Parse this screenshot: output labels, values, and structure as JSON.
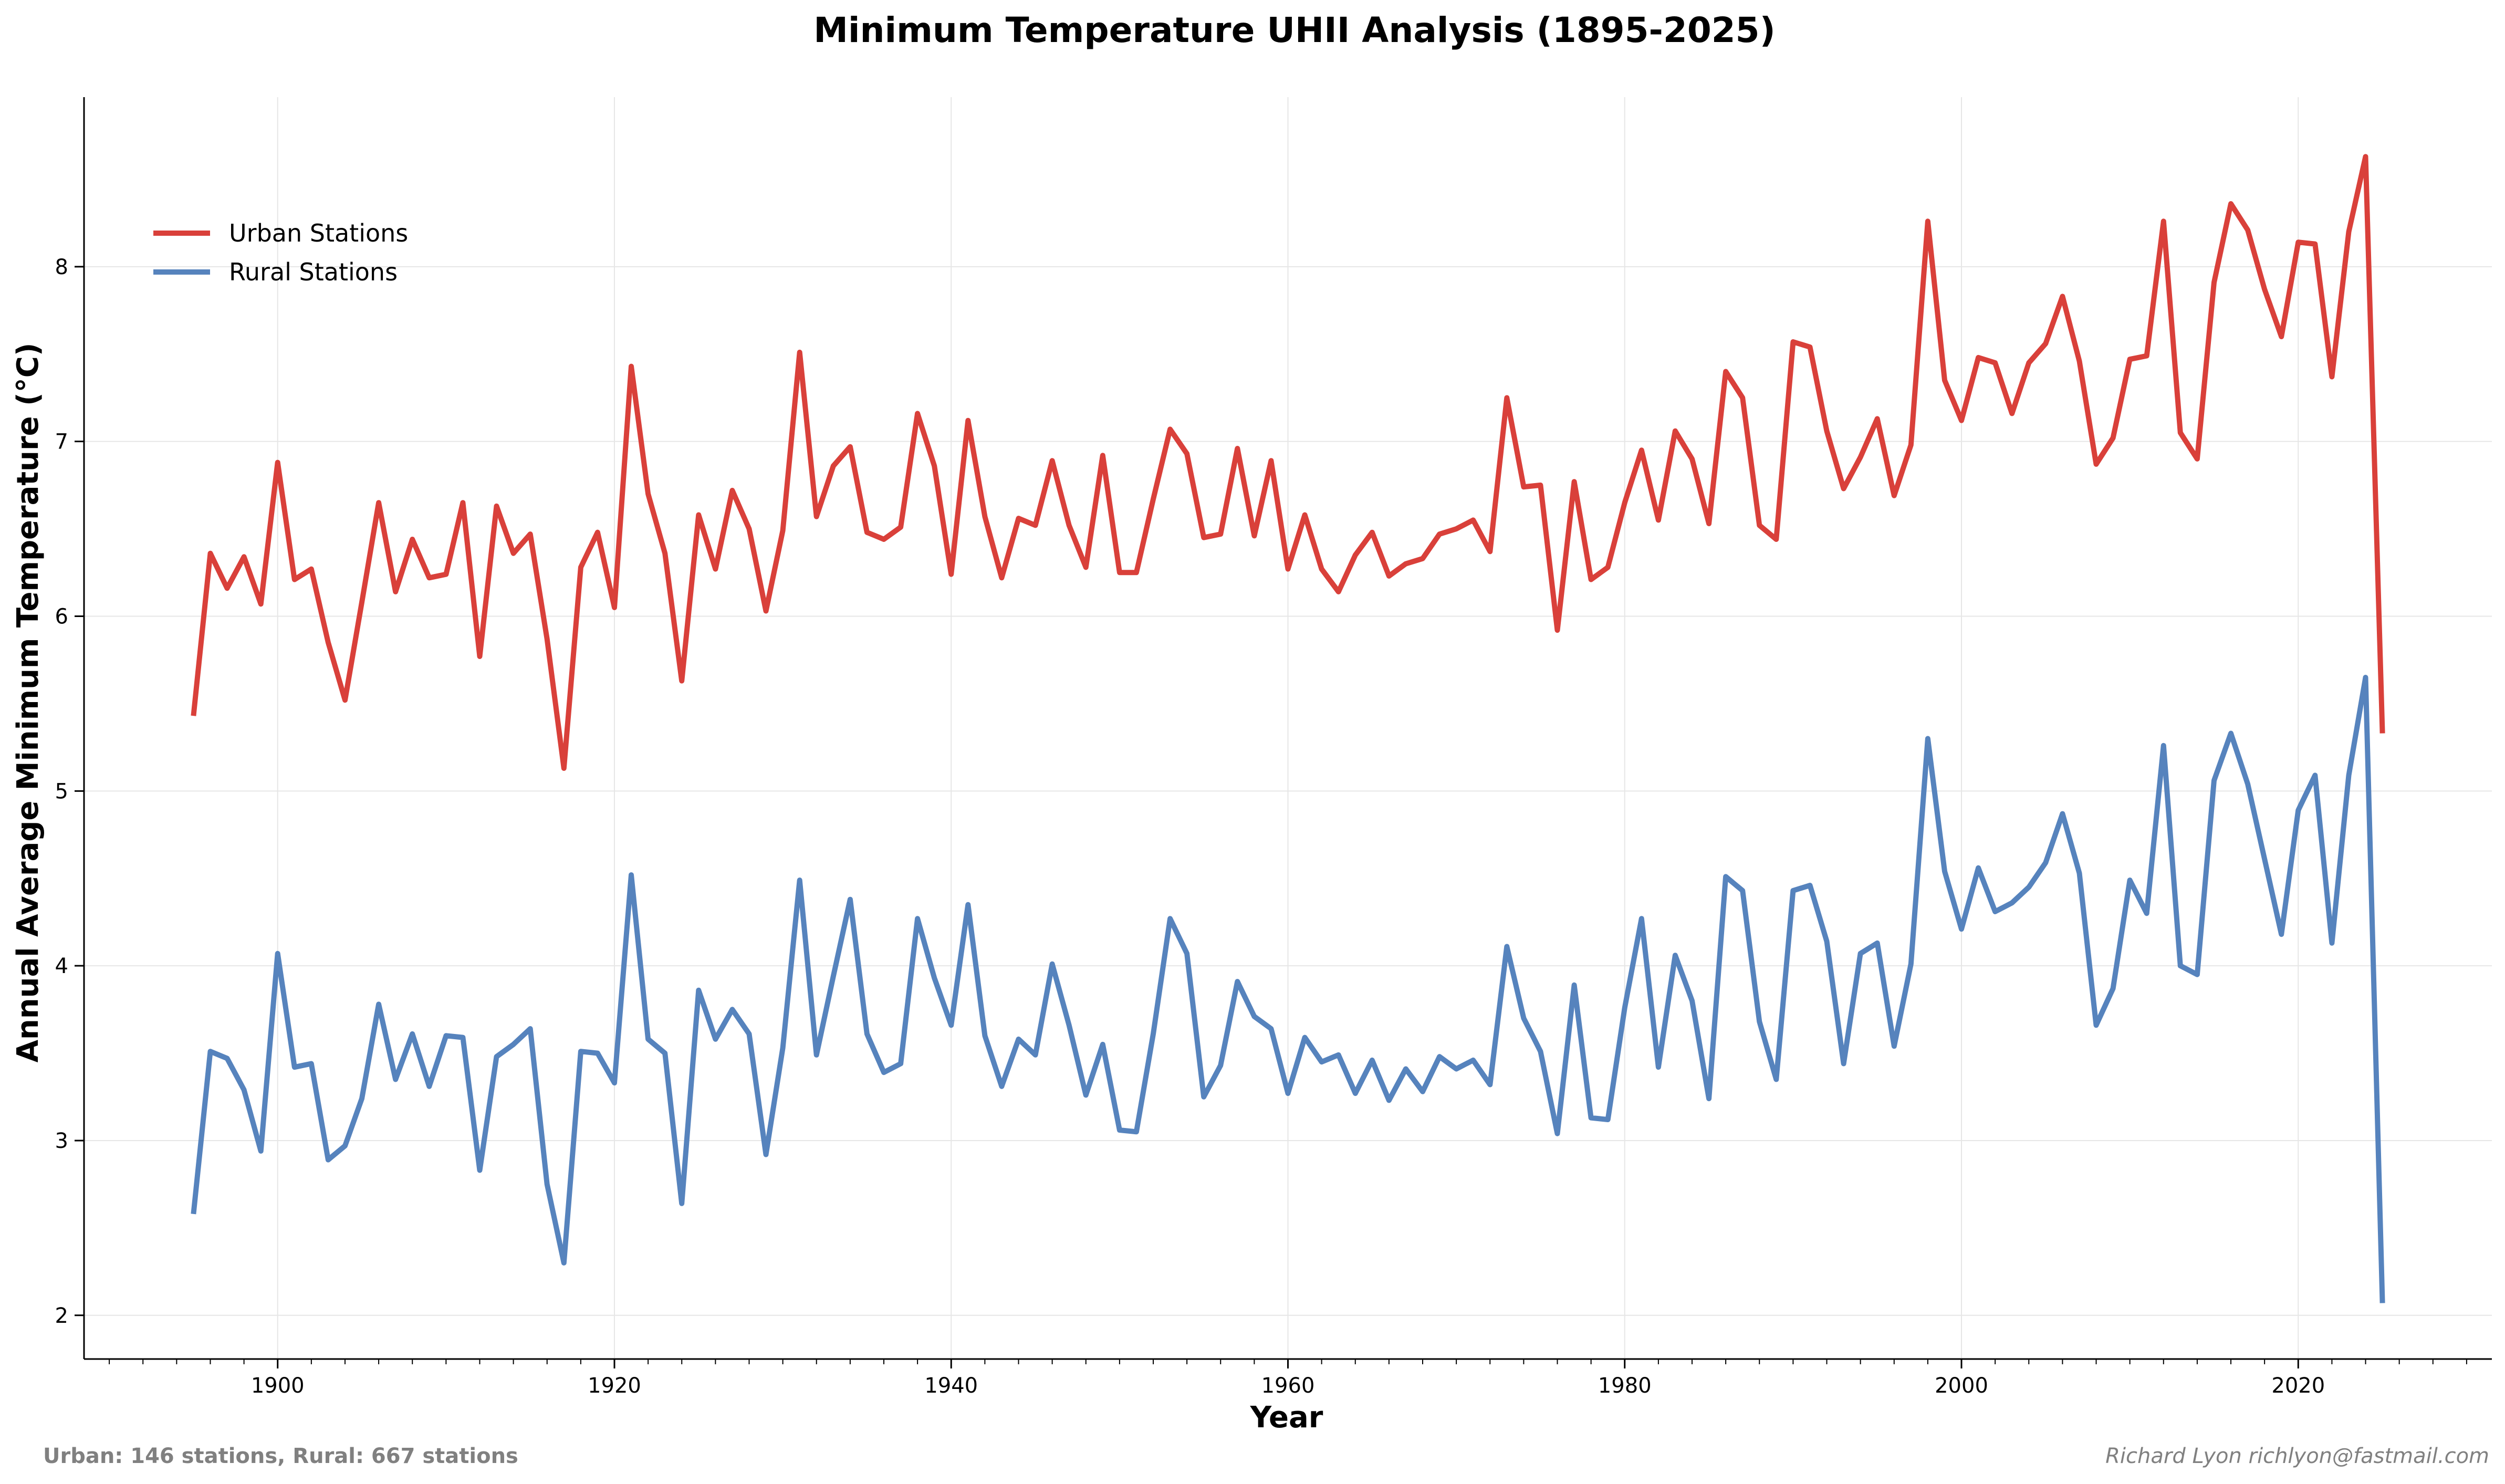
{
  "chart_data": {
    "type": "line",
    "title": "Minimum Temperature UHII Analysis (1895-2025)",
    "xlabel": "Year",
    "ylabel": "Annual Average Minimum Temperature (°C)",
    "xlim": [
      1888.5,
      2031.5
    ],
    "ylim": [
      1.75,
      8.97
    ],
    "x_ticks": [
      1900,
      1920,
      1940,
      1960,
      1980,
      2000,
      2020
    ],
    "y_ticks": [
      2,
      3,
      4,
      5,
      6,
      7,
      8
    ],
    "x_minor_step": 2,
    "grid": true,
    "legend_position": "top-left",
    "x": [
      1895,
      1896,
      1897,
      1898,
      1899,
      1900,
      1901,
      1902,
      1903,
      1904,
      1905,
      1906,
      1907,
      1908,
      1909,
      1910,
      1911,
      1912,
      1913,
      1914,
      1915,
      1916,
      1917,
      1918,
      1919,
      1920,
      1921,
      1922,
      1923,
      1924,
      1925,
      1926,
      1927,
      1928,
      1929,
      1930,
      1931,
      1932,
      1933,
      1934,
      1935,
      1936,
      1937,
      1938,
      1939,
      1940,
      1941,
      1942,
      1943,
      1944,
      1945,
      1946,
      1947,
      1948,
      1949,
      1950,
      1951,
      1952,
      1953,
      1954,
      1955,
      1956,
      1957,
      1958,
      1959,
      1960,
      1961,
      1962,
      1963,
      1964,
      1965,
      1966,
      1967,
      1968,
      1969,
      1970,
      1971,
      1972,
      1973,
      1974,
      1975,
      1976,
      1977,
      1978,
      1979,
      1980,
      1981,
      1982,
      1983,
      1984,
      1985,
      1986,
      1987,
      1988,
      1989,
      1990,
      1991,
      1992,
      1993,
      1994,
      1995,
      1996,
      1997,
      1998,
      1999,
      2000,
      2001,
      2002,
      2003,
      2004,
      2005,
      2006,
      2007,
      2008,
      2009,
      2010,
      2011,
      2012,
      2013,
      2014,
      2015,
      2016,
      2017,
      2018,
      2019,
      2020,
      2021,
      2022,
      2023,
      2024,
      2025
    ],
    "series": [
      {
        "name": "Urban Stations",
        "color": "#d9403a",
        "values": [
          5.43,
          6.36,
          6.16,
          6.34,
          6.07,
          6.88,
          6.21,
          6.27,
          5.85,
          5.52,
          6.08,
          6.65,
          6.14,
          6.44,
          6.22,
          6.24,
          6.65,
          5.77,
          6.63,
          6.36,
          6.47,
          5.87,
          5.13,
          6.28,
          6.48,
          6.05,
          7.43,
          6.7,
          6.36,
          5.63,
          6.58,
          6.27,
          6.72,
          6.5,
          6.03,
          6.49,
          7.51,
          6.57,
          6.86,
          6.97,
          6.48,
          6.44,
          6.51,
          7.16,
          6.86,
          6.24,
          7.12,
          6.57,
          6.22,
          6.56,
          6.52,
          6.89,
          6.52,
          6.28,
          6.92,
          6.25,
          6.25,
          6.67,
          7.07,
          6.93,
          6.45,
          6.47,
          6.96,
          6.46,
          6.89,
          6.27,
          6.58,
          6.27,
          6.14,
          6.35,
          6.48,
          6.23,
          6.3,
          6.33,
          6.47,
          6.5,
          6.55,
          6.37,
          7.25,
          6.74,
          6.75,
          5.92,
          6.77,
          6.21,
          6.28,
          6.65,
          6.95,
          6.55,
          7.06,
          6.9,
          6.53,
          7.4,
          7.25,
          6.52,
          6.44,
          7.57,
          7.54,
          7.06,
          6.73,
          6.91,
          7.13,
          6.69,
          6.98,
          8.26,
          7.35,
          7.12,
          7.48,
          7.45,
          7.16,
          7.45,
          7.56,
          7.83,
          7.46,
          6.87,
          7.02,
          7.47,
          7.49,
          8.26,
          7.05,
          6.9,
          7.91,
          8.36,
          8.21,
          7.87,
          7.6,
          8.14,
          8.13,
          7.37,
          8.2,
          8.63,
          5.33
        ]
      },
      {
        "name": "Rural Stations",
        "color": "#5683bd",
        "values": [
          2.58,
          3.51,
          3.47,
          3.29,
          2.94,
          4.07,
          3.42,
          3.44,
          2.89,
          2.97,
          3.24,
          3.78,
          3.35,
          3.61,
          3.31,
          3.6,
          3.59,
          2.83,
          3.48,
          3.55,
          3.64,
          2.75,
          2.3,
          3.51,
          3.5,
          3.33,
          4.52,
          3.58,
          3.5,
          2.64,
          3.86,
          3.58,
          3.75,
          3.61,
          2.92,
          3.53,
          4.49,
          3.49,
          3.94,
          4.38,
          3.61,
          3.39,
          3.44,
          4.27,
          3.93,
          3.66,
          4.35,
          3.6,
          3.31,
          3.58,
          3.49,
          4.01,
          3.66,
          3.26,
          3.55,
          3.06,
          3.05,
          3.61,
          4.27,
          4.07,
          3.25,
          3.43,
          3.91,
          3.71,
          3.64,
          3.27,
          3.59,
          3.45,
          3.49,
          3.27,
          3.46,
          3.23,
          3.41,
          3.28,
          3.48,
          3.41,
          3.46,
          3.32,
          4.11,
          3.7,
          3.51,
          3.04,
          3.89,
          3.13,
          3.12,
          3.76,
          4.27,
          3.42,
          4.06,
          3.8,
          3.24,
          4.51,
          4.43,
          3.68,
          3.35,
          4.43,
          4.46,
          4.14,
          3.44,
          4.07,
          4.13,
          3.54,
          4.01,
          5.3,
          4.54,
          4.21,
          4.56,
          4.31,
          4.36,
          4.45,
          4.59,
          4.87,
          4.53,
          3.66,
          3.87,
          4.49,
          4.3,
          5.26,
          4.0,
          3.95,
          5.06,
          5.33,
          5.04,
          4.61,
          4.18,
          4.89,
          5.09,
          4.13,
          5.09,
          5.65,
          2.07
        ]
      }
    ]
  },
  "footer": {
    "left_text": "Urban: 146 stations, Rural: 667 stations",
    "right_text": "Richard Lyon richlyon@fastmail.com"
  }
}
